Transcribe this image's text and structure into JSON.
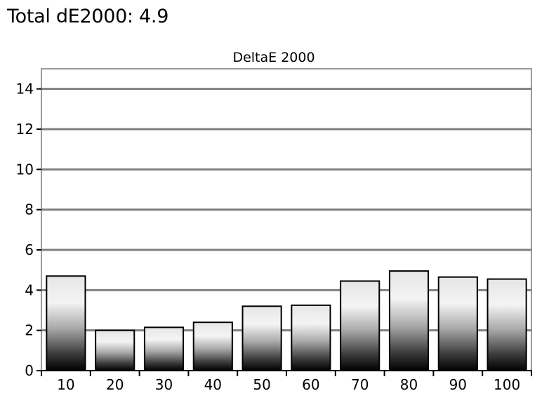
{
  "page_heading": "Total dE2000: 4.9",
  "chart_data": {
    "type": "bar",
    "title": "DeltaE 2000",
    "xlabel": "",
    "ylabel": "",
    "categories": [
      "10",
      "20",
      "30",
      "40",
      "50",
      "60",
      "70",
      "80",
      "90",
      "100"
    ],
    "values": [
      4.7,
      2.0,
      2.15,
      2.4,
      3.2,
      3.25,
      4.45,
      4.95,
      4.65,
      4.55
    ],
    "ylim": [
      0,
      15
    ],
    "yticks": [
      "0",
      "2",
      "4",
      "6",
      "8",
      "10",
      "12",
      "14"
    ],
    "grid": true,
    "legend": "none",
    "colors": {
      "bar_dark": "#000000",
      "bar_light": "#f4f4f4",
      "gridline": "#7f7f7f",
      "axis": "#000000"
    }
  }
}
